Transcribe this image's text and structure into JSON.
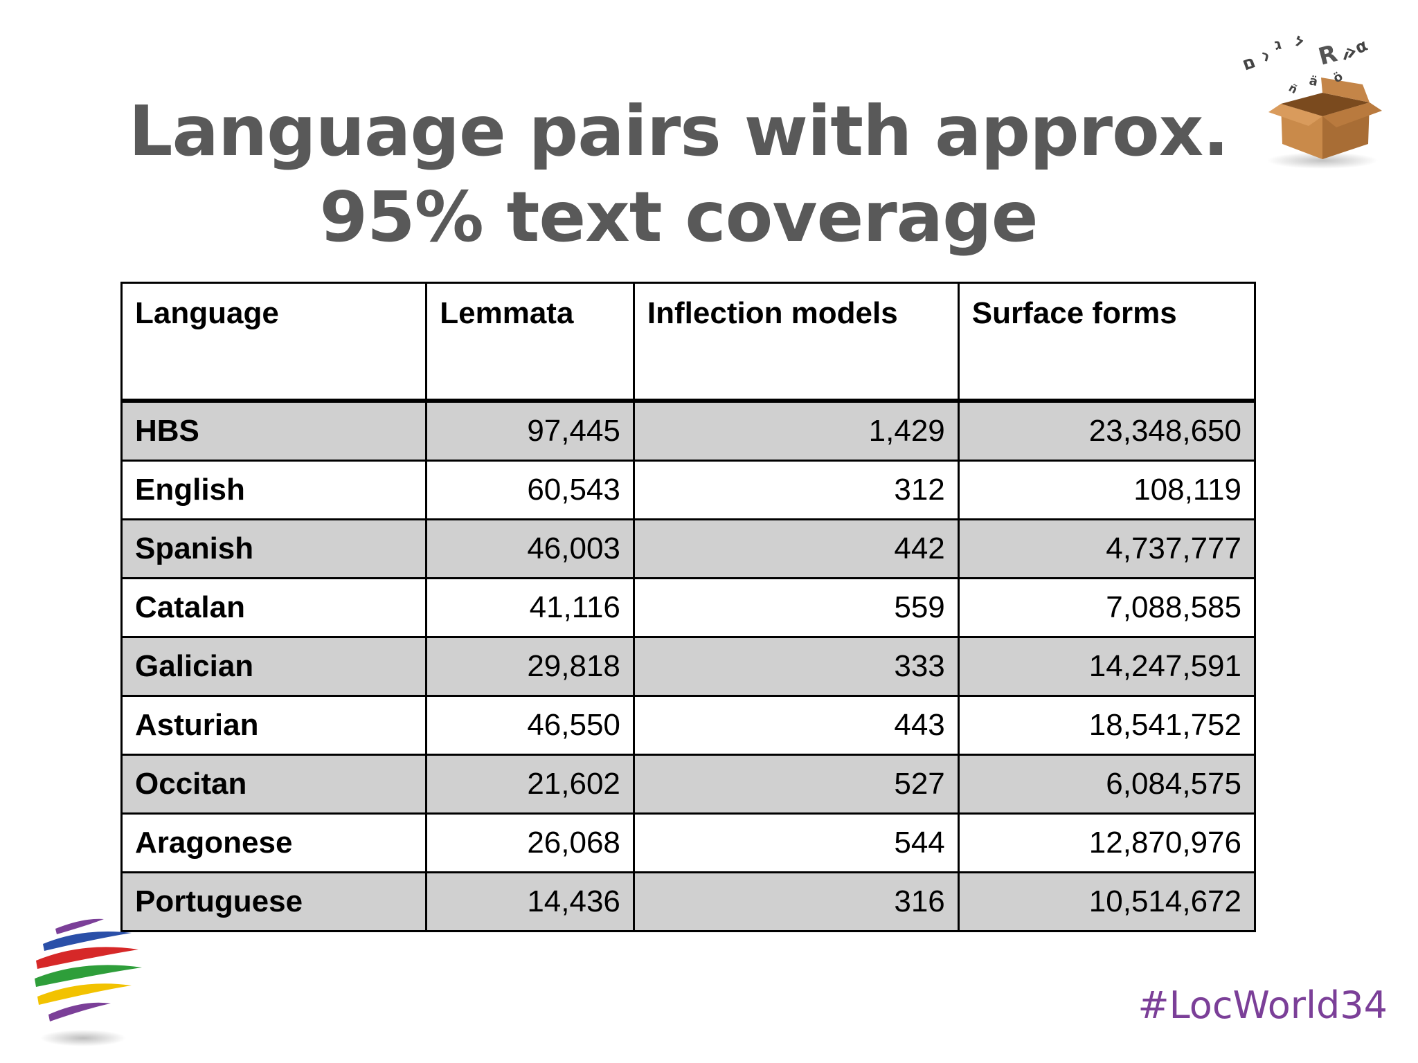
{
  "slide": {
    "title_line1": "Language pairs with approx.",
    "title_line2": "95% text coverage",
    "hashtag": "#LocWorld34"
  },
  "table": {
    "headers": [
      "Language",
      "Lemmata",
      "Inflection models",
      "Surface forms"
    ],
    "rows": [
      {
        "language": "HBS",
        "lemmata": "97,445",
        "inflection_models": "1,429",
        "surface_forms": "23,348,650"
      },
      {
        "language": "English",
        "lemmata": "60,543",
        "inflection_models": "312",
        "surface_forms": "108,119"
      },
      {
        "language": "Spanish",
        "lemmata": "46,003",
        "inflection_models": "442",
        "surface_forms": "4,737,777"
      },
      {
        "language": "Catalan",
        "lemmata": "41,116",
        "inflection_models": "559",
        "surface_forms": "7,088,585"
      },
      {
        "language": "Galician",
        "lemmata": "29,818",
        "inflection_models": "333",
        "surface_forms": "14,247,591"
      },
      {
        "language": "Asturian",
        "lemmata": "46,550",
        "inflection_models": "443",
        "surface_forms": "18,541,752"
      },
      {
        "language": "Occitan",
        "lemmata": "21,602",
        "inflection_models": "527",
        "surface_forms": "6,084,575"
      },
      {
        "language": "Aragonese",
        "lemmata": "26,068",
        "inflection_models": "544",
        "surface_forms": "12,870,976"
      },
      {
        "language": "Portuguese",
        "lemmata": "14,436",
        "inflection_models": "316",
        "surface_forms": "10,514,672"
      }
    ]
  },
  "colors": {
    "title": "#595959",
    "shaded_row": "#d0d0d0",
    "hashtag": "#7b3f98"
  },
  "icons": {
    "top_right": "cardboard-box-with-letters-logo",
    "bottom_left": "colored-stripes-logo"
  }
}
